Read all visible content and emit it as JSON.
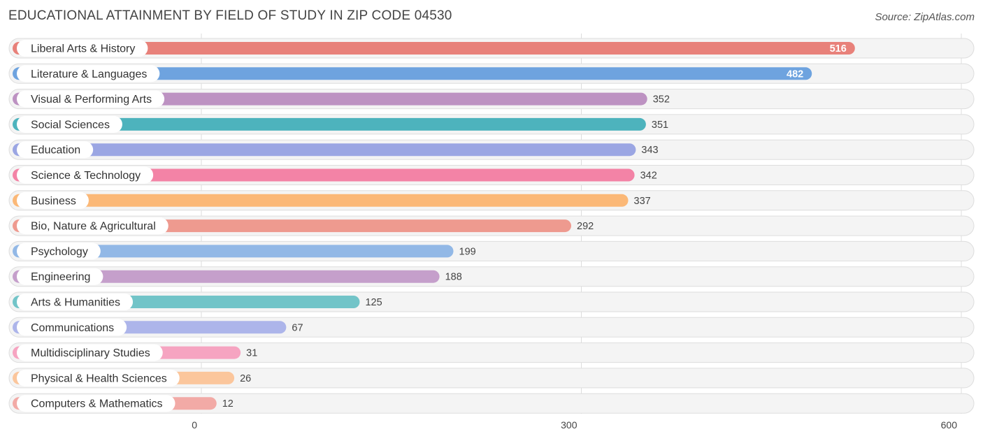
{
  "header": {
    "title": "EDUCATIONAL ATTAINMENT BY FIELD OF STUDY IN ZIP CODE 04530",
    "source": "Source: ZipAtlas.com"
  },
  "chart_data": {
    "type": "bar",
    "orientation": "horizontal",
    "title": "EDUCATIONAL ATTAINMENT BY FIELD OF STUDY IN ZIP CODE 04530",
    "xlabel": "",
    "ylabel": "",
    "xlim": [
      0,
      600
    ],
    "xticks": [
      0,
      300,
      600
    ],
    "grid": true,
    "categories": [
      "Liberal Arts & History",
      "Literature & Languages",
      "Visual & Performing Arts",
      "Social Sciences",
      "Education",
      "Science & Technology",
      "Business",
      "Bio, Nature & Agricultural",
      "Psychology",
      "Engineering",
      "Arts & Humanities",
      "Communications",
      "Multidisciplinary Studies",
      "Physical & Health Sciences",
      "Computers & Mathematics"
    ],
    "values": [
      516,
      482,
      352,
      351,
      343,
      342,
      337,
      292,
      199,
      188,
      125,
      67,
      31,
      26,
      12
    ],
    "colors": [
      "#e8817a",
      "#6ea3df",
      "#bd92c2",
      "#4db3bd",
      "#9ba6e3",
      "#f383a6",
      "#fbb877",
      "#ee9a8f",
      "#92b8e6",
      "#c59fcb",
      "#72c4c8",
      "#adb5ea",
      "#f6a4c1",
      "#fbc69c",
      "#f2aaa6"
    ]
  }
}
